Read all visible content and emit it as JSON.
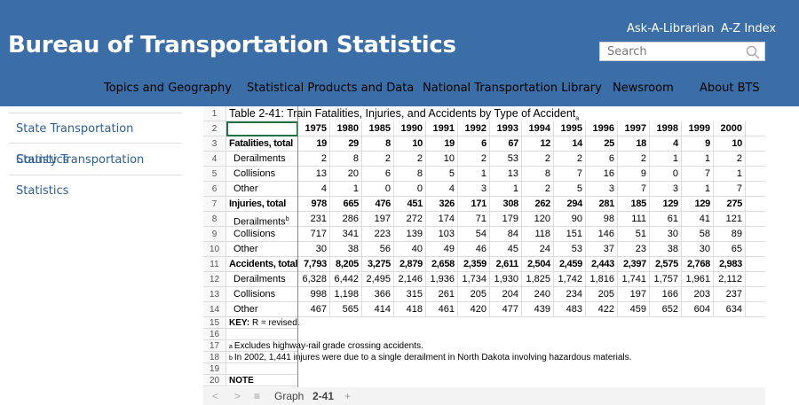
{
  "header": {
    "site_title": "Bureau of Transportation Statistics",
    "links": [
      "Ask-A-Librarian",
      "A-Z Index"
    ],
    "search_placeholder": "Search",
    "nav": [
      "Topics and Geography",
      "Statistical Products and Data",
      "National Transportation Library",
      "Newsroom",
      "About BTS"
    ]
  },
  "sidebar": [
    "State Transportation Statistics",
    "County Transportation Statistics"
  ],
  "sheet": {
    "row_numbers": [
      1,
      2,
      3,
      4,
      5,
      6,
      7,
      8,
      9,
      10,
      11,
      12,
      13,
      14,
      15,
      16,
      17,
      18,
      19,
      20
    ],
    "title": "Table 2-41: Train Fatalities, Injuries, and Accidents by Type of Accident",
    "title_note": "a",
    "years": [
      "1975",
      "1980",
      "1985",
      "1990",
      "1991",
      "1992",
      "1993",
      "1994",
      "1995",
      "1996",
      "1997",
      "1998",
      "1999",
      "2000"
    ],
    "rows": [
      {
        "label": "Fatalities, total",
        "level": 0,
        "values": [
          "19",
          "29",
          "8",
          "10",
          "19",
          "6",
          "67",
          "12",
          "14",
          "25",
          "18",
          "4",
          "9",
          "10"
        ]
      },
      {
        "label": "Derailments",
        "level": 1,
        "values": [
          "2",
          "8",
          "2",
          "2",
          "10",
          "2",
          "53",
          "2",
          "2",
          "6",
          "2",
          "1",
          "1",
          "2"
        ]
      },
      {
        "label": "Collisions",
        "level": 1,
        "values": [
          "13",
          "20",
          "6",
          "8",
          "5",
          "1",
          "13",
          "8",
          "7",
          "16",
          "9",
          "0",
          "7",
          "1"
        ]
      },
      {
        "label": "Other",
        "level": 1,
        "values": [
          "4",
          "1",
          "0",
          "0",
          "4",
          "3",
          "1",
          "2",
          "5",
          "3",
          "7",
          "3",
          "1",
          "7"
        ]
      },
      {
        "label": "Injuries, total",
        "level": 0,
        "values": [
          "978",
          "665",
          "476",
          "451",
          "326",
          "171",
          "308",
          "262",
          "294",
          "281",
          "185",
          "129",
          "129",
          "275"
        ]
      },
      {
        "label": "Derailments",
        "note": "b",
        "level": 1,
        "values": [
          "231",
          "286",
          "197",
          "272",
          "174",
          "71",
          "179",
          "120",
          "90",
          "98",
          "111",
          "61",
          "41",
          "121"
        ]
      },
      {
        "label": "Collisions",
        "level": 1,
        "values": [
          "717",
          "341",
          "223",
          "139",
          "103",
          "54",
          "84",
          "118",
          "151",
          "146",
          "51",
          "30",
          "58",
          "89"
        ]
      },
      {
        "label": "Other",
        "level": 1,
        "values": [
          "30",
          "38",
          "56",
          "40",
          "49",
          "46",
          "45",
          "24",
          "53",
          "37",
          "23",
          "38",
          "30",
          "65"
        ]
      },
      {
        "label": "Accidents, total",
        "level": 0,
        "values": [
          "7,793",
          "8,205",
          "3,275",
          "2,879",
          "2,658",
          "2,359",
          "2,611",
          "2,504",
          "2,459",
          "2,443",
          "2,397",
          "2,575",
          "2,768",
          "2,983"
        ]
      },
      {
        "label": "Derailments",
        "level": 1,
        "values": [
          "6,328",
          "6,442",
          "2,495",
          "2,146",
          "1,936",
          "1,734",
          "1,930",
          "1,825",
          "1,742",
          "1,816",
          "1,741",
          "1,757",
          "1,961",
          "2,112"
        ]
      },
      {
        "label": "Collisions",
        "level": 1,
        "values": [
          "998",
          "1,198",
          "366",
          "315",
          "261",
          "205",
          "204",
          "240",
          "234",
          "205",
          "197",
          "166",
          "203",
          "237"
        ]
      },
      {
        "label": "Other",
        "level": 1,
        "values": [
          "467",
          "565",
          "414",
          "418",
          "461",
          "420",
          "477",
          "439",
          "483",
          "422",
          "459",
          "652",
          "604",
          "634"
        ]
      }
    ],
    "key_label": "KEY:",
    "key_text": "R = revised.",
    "footnotes": [
      {
        "mark": "a",
        "text": "Excludes highway-rail grade crossing accidents."
      },
      {
        "mark": "b",
        "text": "In 2002, 1,441 injures were due to a single derailment in North Dakota involving hazardous materials."
      }
    ],
    "note": "NOTE"
  },
  "tabs": [
    "Graph",
    "2-41"
  ]
}
